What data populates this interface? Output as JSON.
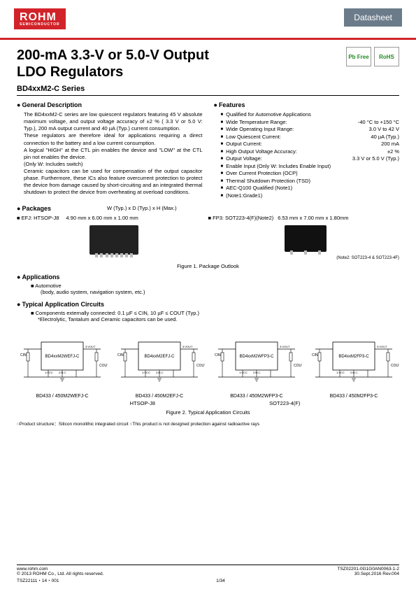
{
  "header": {
    "logo": "ROHM",
    "logo_sub": "SEMICONDUCTOR",
    "badge": "Datasheet"
  },
  "title_line1": "200-mA 3.3-V or 5.0-V Output",
  "title_line2": "LDO Regulators",
  "cert1": "Pb Free",
  "cert2": "RoHS",
  "series": "BD4xxM2-C Series",
  "gen_desc_header": "General Description",
  "gen_desc": "The BD4xxM2-C series are low quiescent regulators featuring 45 V absolute maximum voltage, and output voltage accuracy of ±2 % ( 3.3 V or 5.0 V: Typ.), 200 mA output current and 40 µA (Typ.) current consumption.\nThese regulators are therefore ideal for applications requiring a direct connection to the battery and a low current consumption.\nA logical \"HIGH\" at the CTL pin enables the device and \"LOW\" at the CTL pin not enables the device.\n(Only W: Includes switch)\nCeramic capacitors can be used for compensation of the output capacitor phase. Furthermore, these ICs also feature overcurrent protection to protect the device from damage caused by short-circuiting and an integrated thermal shutdown to protect the device from overheating at overload conditions.",
  "features_header": "Features",
  "features": [
    {
      "label": "Qualified for Automotive Applications",
      "val": ""
    },
    {
      "label": "Wide Temperature Range:",
      "val": "-40 °C to +150 °C"
    },
    {
      "label": "Wide Operating Input Range:",
      "val": "3.0 V to 42 V"
    },
    {
      "label": "Low Quiescent Current:",
      "val": "40 µA (Typ.)"
    },
    {
      "label": "Output Current:",
      "val": "200 mA"
    },
    {
      "label": "High Output Voltage Accuracy:",
      "val": "±2 %"
    },
    {
      "label": "Output Voltage:",
      "val": "3.3 V or 5.0 V (Typ.)"
    },
    {
      "label": "Enable Input (Only W: Includes Enable Input)",
      "val": ""
    },
    {
      "label": "Over Current Protection (OCP)",
      "val": ""
    },
    {
      "label": "Thermal Shutdown Protection (TSD)",
      "val": ""
    },
    {
      "label": "AEC-Q100 Qualified (Note1)",
      "val": ""
    },
    {
      "label": "(Note1:Grade1)",
      "val": ""
    }
  ],
  "packages_header": "Packages",
  "pkg_dim_header": "W (Typ.) x D (Typ.) x H (Max.)",
  "pkg1_name": "EFJ: HTSOP-J8",
  "pkg1_dim": "4.90 mm x 6.00 mm x 1.00 mm",
  "pkg2_name": "FP3: SOT223-4(F)(Note2)",
  "pkg2_dim": "6.53 mm x 7.00 mm x 1.80mm",
  "pkg_note2": "(Note2: SOT223-4 & SOT223-4F)",
  "fig1_caption": "Figure 1. Package Outlook",
  "applications_header": "Applications",
  "app_main": "Automotive",
  "app_sub": "(body, audio system, navigation system, etc.)",
  "typical_header": "Typical Application Circuits",
  "circ_note": "Components externally connected: 0.1 µF ≤ CIN, 10 µF ≤ COUT (Typ.)",
  "circ_sub": "*Electrolytic, Tantalum and Ceramic capacitors can be used.",
  "circuits": [
    {
      "part": "BD4xxM2WEFJ-C",
      "label": "BD433 / 450M2WEFJ-C"
    },
    {
      "part": "BD4xxM2EFJ-C",
      "label": "BD433 / 450M2EFJ-C"
    },
    {
      "part": "BD4xxM2WFP3-C",
      "label": "BD433 / 450M2WFP3-C"
    },
    {
      "part": "BD4xxM2FP3-C",
      "label": "BD433 / 450M2FP3-C"
    }
  ],
  "pkg_type1": "HTSOP-J8",
  "pkg_type2": "SOT223-4(F)",
  "fig2_caption": "Figure 2. Typical Application Circuits",
  "prod_struct": "○Product structure：Silicon monolithic integrated circuit    ○This product is not designed protection against radioactive rays",
  "footer": {
    "url": "www.rohm.com",
    "copyright": "© 2013 ROHM Co., Ltd. All rights reserved.",
    "tsz1": "TSZ22111・14・001",
    "page": "1/34",
    "tsz2": "TSZ02201-0G1G0AN0063-1-2",
    "date": "30.Sept.2016 Rev.004"
  },
  "circuit_pins": {
    "cin": "CIN",
    "cout": "COUT",
    "vcc": "1:VCC",
    "nc": "2:N.C.",
    "vout": "3:VOUT",
    "ctl": "1:CTL"
  }
}
